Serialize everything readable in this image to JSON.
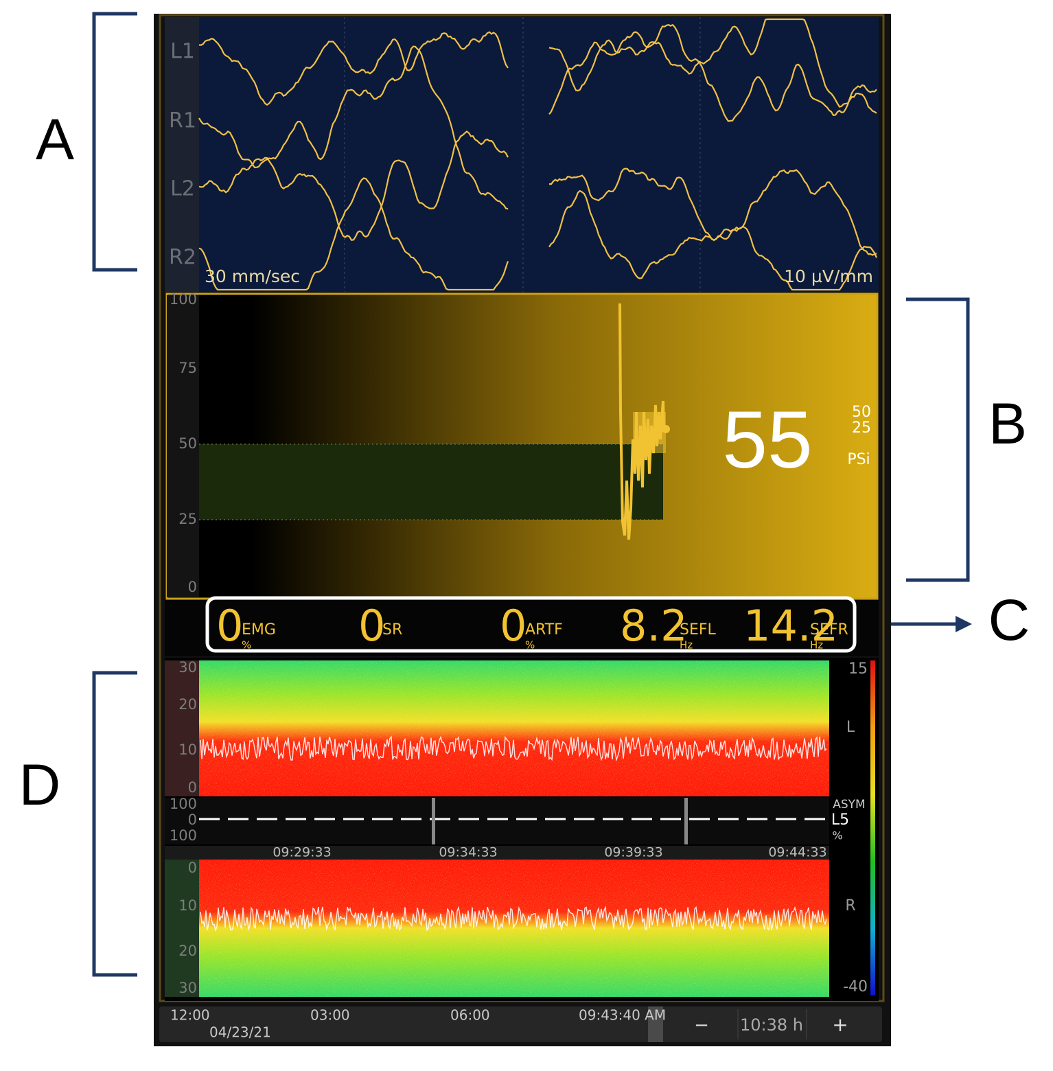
{
  "annotations": {
    "a": "A",
    "b": "B",
    "c": "C",
    "d": "D"
  },
  "eeg": {
    "channels": [
      "L1",
      "R1",
      "L2",
      "R2"
    ],
    "speed": "30 mm/sec",
    "gain": "10 µV/mm"
  },
  "psi": {
    "axis_ticks": [
      100,
      75,
      50,
      25,
      0
    ],
    "value": 55,
    "range_labels": [
      50,
      25
    ],
    "label": "PSi"
  },
  "parameters": [
    {
      "value": 0,
      "name": "EMG",
      "unit": "%"
    },
    {
      "value": 0,
      "name": "SR"
    },
    {
      "value": 0,
      "name": "ARTF",
      "unit": "%"
    },
    {
      "value": 8.2,
      "name": "SEFL",
      "unit": "Hz"
    },
    {
      "value": 14.2,
      "name": "SEFR",
      "unit": "Hz"
    }
  ],
  "dsa": {
    "left_ticks": [
      30,
      20,
      10,
      0
    ],
    "right_ticks": [
      0,
      10,
      20,
      30
    ],
    "left_label": "L",
    "right_label": "R",
    "colorbar_ticks": [
      15,
      -40
    ],
    "asym_ticks": [
      100,
      0,
      100
    ],
    "asym_label": "ASYM",
    "asym_channel": "L5",
    "asym_unit": "%",
    "times": [
      "09:29:33",
      "09:34:33",
      "09:39:33",
      "09:44:33"
    ]
  },
  "timeline": {
    "marks": [
      "12:00",
      "03:00",
      "06:00"
    ],
    "date": "04/23/21",
    "cursor": "09:43:40 AM",
    "zoom_out": "−",
    "span": "10:38 h",
    "zoom_in": "+"
  }
}
